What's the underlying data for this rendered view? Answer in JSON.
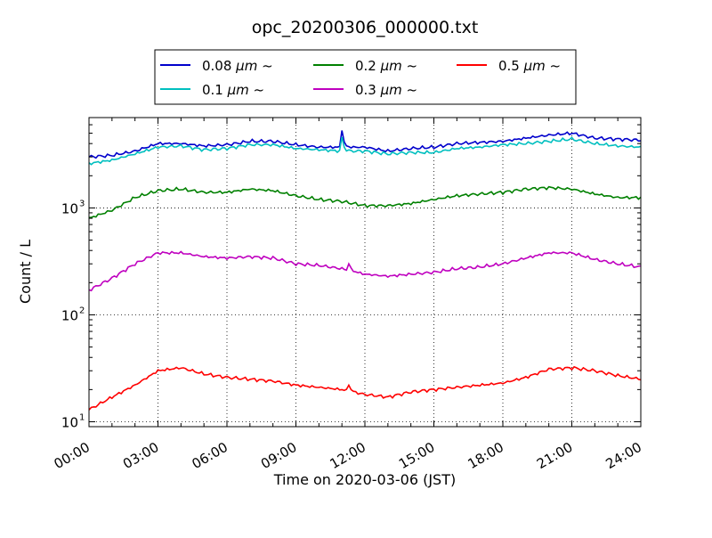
{
  "chart_data": {
    "type": "line",
    "title": "opc_20200306_000000.txt",
    "xlabel": "Time on 2020-03-06 (JST)",
    "ylabel": "Count / L",
    "x_unit": "hours",
    "xlim": [
      0,
      24
    ],
    "x_ticks": [
      0,
      3,
      6,
      9,
      12,
      15,
      18,
      21,
      24
    ],
    "x_tick_labels": [
      "00:00",
      "03:00",
      "06:00",
      "09:00",
      "12:00",
      "15:00",
      "18:00",
      "21:00",
      "24:00"
    ],
    "y_scale": "log",
    "ylim": [
      9,
      7000
    ],
    "y_ticks": [
      10,
      100,
      1000
    ],
    "y_tick_labels": [
      "10",
      "10",
      "10"
    ],
    "y_tick_exponents": [
      "1",
      "2",
      "3"
    ],
    "grid": true,
    "legend": {
      "placement": "top-center, above plot",
      "columns": 3
    },
    "x": [
      0,
      1,
      2,
      3,
      4,
      5,
      6,
      7,
      8,
      9,
      10,
      11,
      12,
      13,
      14,
      15,
      16,
      17,
      18,
      19,
      20,
      21,
      22,
      23,
      24
    ],
    "series": [
      {
        "name": "0.08",
        "unit": "μm",
        "suffix": "~",
        "color": "#0000cc",
        "values": [
          3000,
          3100,
          3400,
          4000,
          4000,
          3800,
          3900,
          4200,
          4200,
          3900,
          3700,
          3700,
          3700,
          3400,
          3600,
          3700,
          4000,
          4100,
          4200,
          4500,
          4800,
          5000,
          4500,
          4400,
          4300
        ]
      },
      {
        "name": "0.1",
        "unit": "μm",
        "suffix": "~",
        "color": "#00bfbf",
        "values": [
          2600,
          2800,
          3200,
          3700,
          3800,
          3500,
          3600,
          3900,
          3900,
          3600,
          3500,
          3400,
          3400,
          3200,
          3300,
          3300,
          3600,
          3700,
          3900,
          4000,
          4200,
          4400,
          4000,
          3800,
          3700
        ]
      },
      {
        "name": "0.2",
        "unit": "μm",
        "suffix": "~",
        "color": "#008000",
        "values": [
          800,
          950,
          1250,
          1450,
          1500,
          1400,
          1400,
          1500,
          1450,
          1300,
          1200,
          1150,
          1050,
          1050,
          1100,
          1200,
          1300,
          1350,
          1400,
          1500,
          1550,
          1500,
          1350,
          1250,
          1250
        ]
      },
      {
        "name": "0.3",
        "unit": "μm",
        "suffix": "~",
        "color": "#bf00bf",
        "values": [
          170,
          220,
          300,
          380,
          380,
          350,
          340,
          350,
          340,
          300,
          290,
          270,
          240,
          230,
          240,
          250,
          270,
          280,
          300,
          340,
          380,
          380,
          330,
          300,
          280
        ]
      },
      {
        "name": "0.5",
        "unit": "μm",
        "suffix": "~",
        "color": "#ff0000",
        "values": [
          13,
          17,
          22,
          30,
          32,
          28,
          26,
          25,
          24,
          22,
          21,
          20,
          18,
          17,
          19,
          20,
          21,
          22,
          23,
          26,
          31,
          32,
          30,
          27,
          25
        ]
      }
    ],
    "spikes": [
      {
        "series": 0,
        "x": 11.0,
        "y": 5300
      },
      {
        "series": 1,
        "x": 11.0,
        "y": 4600
      },
      {
        "series": 3,
        "x": 11.3,
        "y": 300
      },
      {
        "series": 4,
        "x": 11.3,
        "y": 22
      }
    ]
  }
}
